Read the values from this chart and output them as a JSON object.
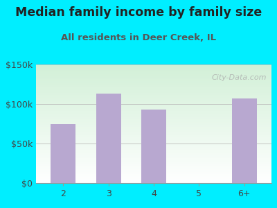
{
  "title": "Median family income by family size",
  "subtitle": "All residents in Deer Creek, IL",
  "categories": [
    "2",
    "3",
    "4",
    "5",
    "6+"
  ],
  "values": [
    75000,
    113000,
    93000,
    0,
    107000
  ],
  "bar_color": "#b8a8d0",
  "title_color": "#222222",
  "subtitle_color": "#555555",
  "background_outer": "#00eeff",
  "ylim": [
    0,
    150000
  ],
  "yticks": [
    0,
    50000,
    100000,
    150000
  ],
  "watermark": "City-Data.com",
  "title_fontsize": 12.5,
  "subtitle_fontsize": 9.5
}
